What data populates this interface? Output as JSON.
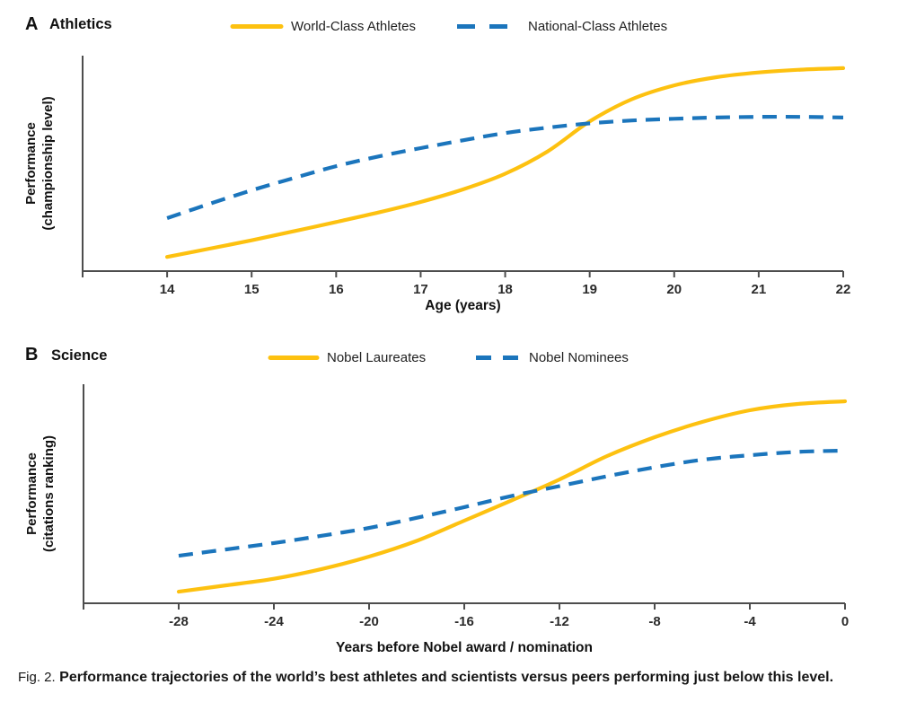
{
  "colors": {
    "gold": "#FDC110",
    "blue": "#1B75BC",
    "axis": "#4D4D4D",
    "tick_text": "#2B2B2B",
    "label_text": "#111111"
  },
  "caption": {
    "prefix": "Fig. 2.",
    "text": "Performance trajectories of the world’s best athletes and scientists versus peers performing just below this level."
  },
  "chart_data": [
    {
      "type": "line",
      "panel_letter": "A",
      "title": "Athletics",
      "xlabel": "Age (years)",
      "ylabel_line1": "Performance",
      "ylabel_line2": "(championship level)",
      "xlim": [
        13,
        22
      ],
      "ylim": [
        0,
        1
      ],
      "xticks": [
        14,
        15,
        16,
        17,
        18,
        19,
        20,
        21,
        22
      ],
      "grid": false,
      "legend_position": "top",
      "series": [
        {
          "name": "World-Class Athletes",
          "color_key": "gold",
          "dash": false,
          "x": [
            14,
            14.5,
            15,
            15.5,
            16,
            16.5,
            17,
            17.5,
            18,
            18.5,
            19,
            19.5,
            20,
            20.5,
            21,
            21.5,
            22
          ],
          "y": [
            0.066,
            0.104,
            0.143,
            0.185,
            0.228,
            0.272,
            0.321,
            0.379,
            0.452,
            0.555,
            0.695,
            0.798,
            0.862,
            0.9,
            0.922,
            0.935,
            0.942
          ]
        },
        {
          "name": "National-Class Athletes",
          "color_key": "blue",
          "dash": true,
          "x": [
            14,
            14.5,
            15,
            15.5,
            16,
            16.5,
            17,
            17.5,
            18,
            18.5,
            19,
            19.5,
            20,
            20.5,
            21,
            21.5,
            22
          ],
          "y": [
            0.246,
            0.312,
            0.375,
            0.432,
            0.487,
            0.532,
            0.571,
            0.607,
            0.641,
            0.666,
            0.686,
            0.699,
            0.707,
            0.713,
            0.716,
            0.716,
            0.713
          ]
        }
      ]
    },
    {
      "type": "line",
      "panel_letter": "B",
      "title": "Science",
      "xlabel": "Years before Nobel award / nomination",
      "ylabel_line1": "Performance",
      "ylabel_line2": "(citations ranking)",
      "xlim": [
        -32,
        0
      ],
      "ylim": [
        0,
        1
      ],
      "xticks": [
        -28,
        -24,
        -20,
        -16,
        -12,
        -8,
        -4,
        0
      ],
      "grid": false,
      "legend_position": "top",
      "series": [
        {
          "name": "Nobel Laureates",
          "color_key": "gold",
          "dash": false,
          "x": [
            -28,
            -26,
            -24,
            -22,
            -20,
            -18,
            -16,
            -14,
            -12,
            -10,
            -8,
            -6,
            -4,
            -2,
            0
          ],
          "y": [
            0.053,
            0.082,
            0.112,
            0.156,
            0.213,
            0.285,
            0.377,
            0.47,
            0.565,
            0.672,
            0.758,
            0.828,
            0.881,
            0.91,
            0.922
          ]
        },
        {
          "name": "Nobel Nominees",
          "color_key": "blue",
          "dash": true,
          "x": [
            -28,
            -26,
            -24,
            -22,
            -20,
            -18,
            -16,
            -14,
            -12,
            -10,
            -8,
            -6,
            -4,
            -2,
            0
          ],
          "y": [
            0.217,
            0.246,
            0.275,
            0.308,
            0.344,
            0.39,
            0.439,
            0.49,
            0.535,
            0.58,
            0.621,
            0.655,
            0.676,
            0.691,
            0.697
          ]
        }
      ]
    }
  ]
}
